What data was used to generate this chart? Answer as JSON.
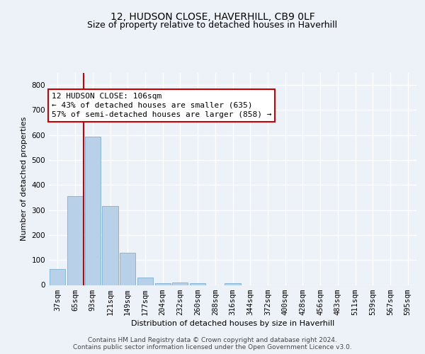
{
  "title_line1": "12, HUDSON CLOSE, HAVERHILL, CB9 0LF",
  "title_line2": "Size of property relative to detached houses in Haverhill",
  "xlabel": "Distribution of detached houses by size in Haverhill",
  "ylabel": "Number of detached properties",
  "categories": [
    "37sqm",
    "65sqm",
    "93sqm",
    "121sqm",
    "149sqm",
    "177sqm",
    "204sqm",
    "232sqm",
    "260sqm",
    "288sqm",
    "316sqm",
    "344sqm",
    "372sqm",
    "400sqm",
    "428sqm",
    "456sqm",
    "483sqm",
    "511sqm",
    "539sqm",
    "567sqm",
    "595sqm"
  ],
  "values": [
    65,
    355,
    595,
    315,
    128,
    30,
    8,
    10,
    8,
    0,
    8,
    0,
    0,
    0,
    0,
    0,
    0,
    0,
    0,
    0,
    0
  ],
  "bar_color": "#b8d0e8",
  "bar_edge_color": "#7aafd4",
  "red_line_x": 1.5,
  "annotation_text": "12 HUDSON CLOSE: 106sqm\n← 43% of detached houses are smaller (635)\n57% of semi-detached houses are larger (858) →",
  "annotation_box_color": "#ffffff",
  "annotation_box_edge": "#cc0000",
  "red_line_color": "#cc0000",
  "ylim": [
    0,
    850
  ],
  "yticks": [
    0,
    100,
    200,
    300,
    400,
    500,
    600,
    700,
    800
  ],
  "background_color": "#edf2f9",
  "grid_color": "#ffffff",
  "footer_line1": "Contains HM Land Registry data © Crown copyright and database right 2024.",
  "footer_line2": "Contains public sector information licensed under the Open Government Licence v3.0.",
  "title_fontsize": 10,
  "subtitle_fontsize": 9,
  "axis_label_fontsize": 8,
  "tick_fontsize": 7.5,
  "annotation_fontsize": 8,
  "footer_fontsize": 6.5
}
